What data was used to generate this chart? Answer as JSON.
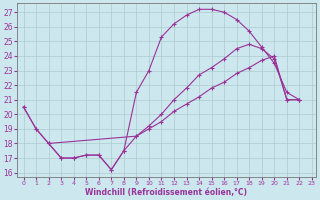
{
  "xlabel": "Windchill (Refroidissement éolien,°C)",
  "bg_color": "#cce8ee",
  "grid_color": "#aacccc",
  "line_color": "#993399",
  "xlim": [
    -0.5,
    23.3
  ],
  "ylim": [
    15.7,
    27.6
  ],
  "xticks": [
    0,
    1,
    2,
    3,
    4,
    5,
    6,
    7,
    8,
    9,
    10,
    11,
    12,
    13,
    14,
    15,
    16,
    17,
    18,
    19,
    20,
    21,
    22,
    23
  ],
  "yticks": [
    16,
    17,
    18,
    19,
    20,
    21,
    22,
    23,
    24,
    25,
    26,
    27
  ],
  "line1_x": [
    0,
    1,
    2,
    3,
    4,
    5,
    6,
    7,
    8,
    9,
    10,
    11,
    12,
    13,
    14,
    15,
    16,
    17,
    18,
    19,
    20,
    21,
    22
  ],
  "line1_y": [
    20.5,
    19.0,
    18.0,
    17.0,
    17.0,
    17.2,
    17.2,
    16.2,
    17.5,
    21.5,
    23.0,
    25.3,
    26.2,
    26.8,
    27.2,
    27.2,
    27.0,
    26.5,
    25.7,
    24.6,
    23.5,
    21.5,
    21.0
  ],
  "line2_x": [
    2,
    3,
    4,
    5,
    6,
    7,
    8,
    9,
    10,
    11,
    12,
    13,
    14,
    15,
    16,
    17,
    18,
    19,
    20,
    21,
    22
  ],
  "line2_y": [
    18.0,
    17.0,
    17.0,
    17.2,
    17.2,
    16.2,
    17.5,
    18.5,
    19.2,
    20.0,
    21.0,
    21.8,
    22.7,
    23.2,
    23.8,
    24.5,
    24.8,
    24.5,
    23.8,
    21.0,
    21.0
  ],
  "line3_x": [
    0,
    1,
    2,
    9,
    10,
    11,
    12,
    13,
    14,
    15,
    16,
    17,
    18,
    19,
    20,
    21,
    22
  ],
  "line3_y": [
    20.5,
    19.0,
    18.0,
    18.5,
    19.0,
    19.5,
    20.2,
    20.7,
    21.2,
    21.8,
    22.2,
    22.8,
    23.2,
    23.7,
    24.0,
    21.0,
    21.0
  ]
}
